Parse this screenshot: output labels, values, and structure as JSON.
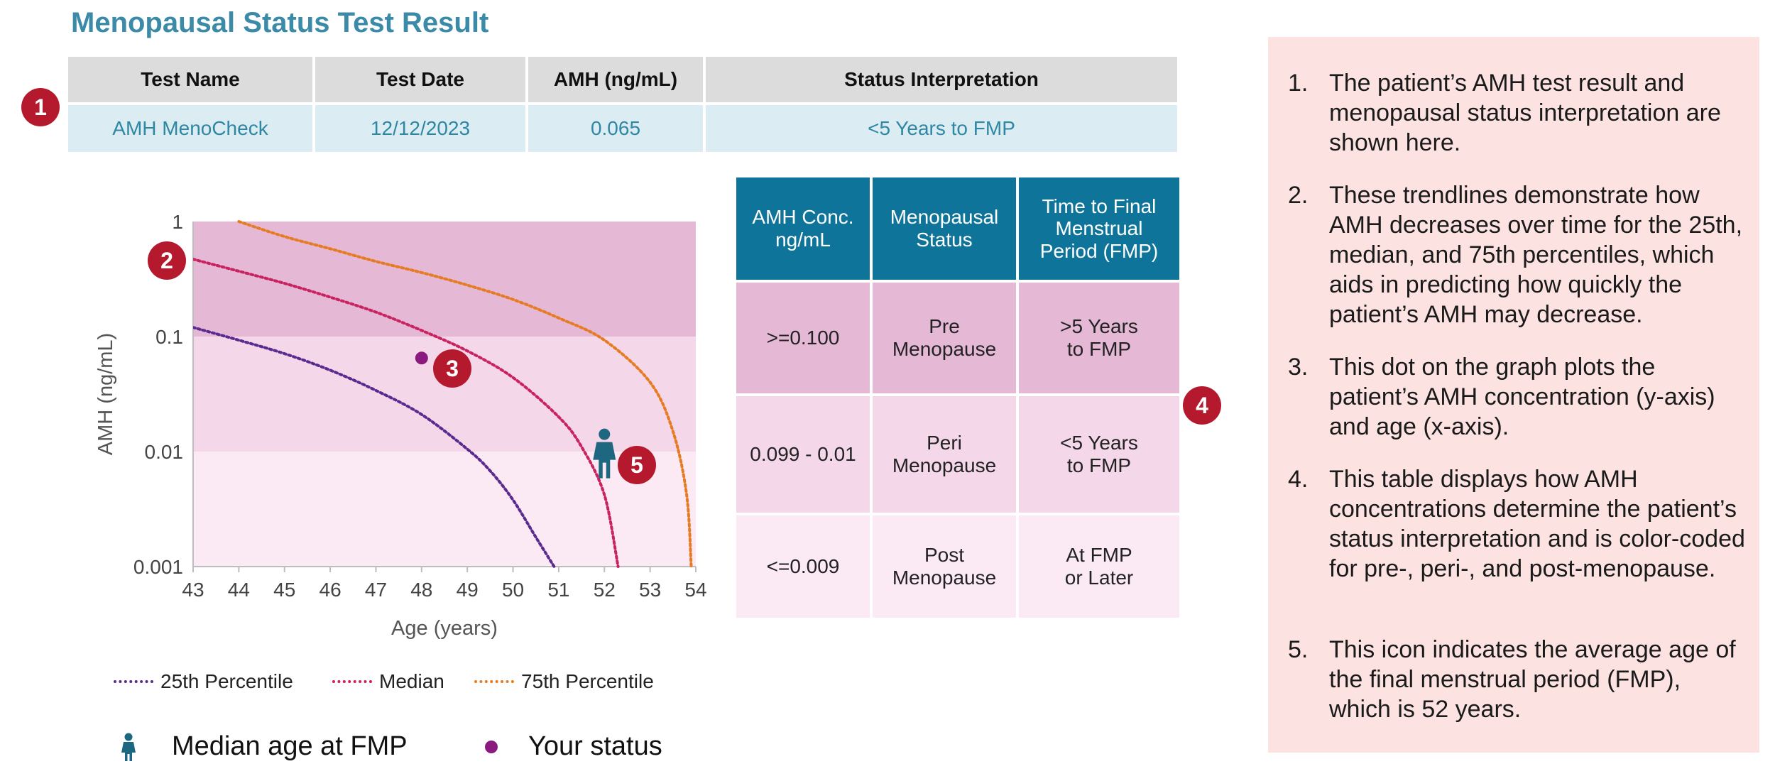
{
  "title": "Menopausal Status Test Result",
  "result_table": {
    "headers": [
      "Test Name",
      "Test Date",
      "AMH (ng/mL)",
      "Status Interpretation"
    ],
    "values": [
      "AMH MenoCheck",
      "12/12/2023",
      "0.065",
      "<5 Years to FMP"
    ]
  },
  "badges": [
    "1",
    "2",
    "3",
    "4",
    "5"
  ],
  "status_table": {
    "headers": [
      "AMH Conc.\nng/mL",
      "Menopausal\nStatus",
      "Time to Final\nMenstrual\nPeriod (FMP)"
    ],
    "rows": [
      {
        "conc": ">=0.100",
        "status": "Pre\nMenopause",
        "time": ">5 Years\nto FMP"
      },
      {
        "conc": "0.099 - 0.01",
        "status": "Peri\nMenopause",
        "time": "<5 Years\nto FMP"
      },
      {
        "conc": "<=0.009",
        "status": "Post\nMenopause",
        "time": "At FMP\nor Later"
      }
    ],
    "colors": {
      "header": "#0f7499",
      "pre": "#e5b8d6",
      "peri": "#f5d7ea",
      "post": "#fbeaf3"
    }
  },
  "chart_data": {
    "type": "line",
    "xlabel": "Age (years)",
    "ylabel": "AMH (ng/mL)",
    "xlim": [
      43,
      54
    ],
    "ylim": [
      0.001,
      1
    ],
    "yscale": "log",
    "x_ticks": [
      "43",
      "44",
      "45",
      "46",
      "47",
      "48",
      "49",
      "50",
      "51",
      "52",
      "53",
      "54"
    ],
    "y_ticks": [
      {
        "value": 1,
        "label": "1"
      },
      {
        "value": 0.1,
        "label": "0.1"
      },
      {
        "value": 0.01,
        "label": "0.01"
      },
      {
        "value": 0.001,
        "label": "0.001"
      }
    ],
    "bands": [
      {
        "from": 0.1,
        "to": 1,
        "color": "#e5b8d6"
      },
      {
        "from": 0.01,
        "to": 0.1,
        "color": "#f5d7ea"
      },
      {
        "from": 0.001,
        "to": 0.01,
        "color": "#fbeaf3"
      }
    ],
    "series": [
      {
        "name": "25th Percentile",
        "color": "#5b2a8f",
        "points": [
          [
            43,
            0.12
          ],
          [
            44,
            0.093
          ],
          [
            45,
            0.071
          ],
          [
            46,
            0.051
          ],
          [
            47,
            0.034
          ],
          [
            48,
            0.021
          ],
          [
            49,
            0.0105
          ],
          [
            49.5,
            0.0068
          ],
          [
            50,
            0.0038
          ],
          [
            50.5,
            0.0018
          ],
          [
            50.9,
            0.001
          ]
        ]
      },
      {
        "name": "Median",
        "color": "#c8235e",
        "points": [
          [
            43,
            0.47
          ],
          [
            44,
            0.37
          ],
          [
            45,
            0.29
          ],
          [
            46,
            0.22
          ],
          [
            47,
            0.163
          ],
          [
            48,
            0.113
          ],
          [
            49,
            0.075
          ],
          [
            50,
            0.044
          ],
          [
            51,
            0.02
          ],
          [
            51.5,
            0.011
          ],
          [
            52,
            0.0042
          ],
          [
            52.3,
            0.001
          ]
        ]
      },
      {
        "name": "75th Percentile",
        "color": "#e57c23",
        "points": [
          [
            44,
            1.0
          ],
          [
            45,
            0.74
          ],
          [
            46,
            0.58
          ],
          [
            47,
            0.45
          ],
          [
            48,
            0.36
          ],
          [
            49,
            0.28
          ],
          [
            50,
            0.21
          ],
          [
            51,
            0.145
          ],
          [
            52,
            0.093
          ],
          [
            53,
            0.04
          ],
          [
            53.5,
            0.015
          ],
          [
            53.8,
            0.0042
          ],
          [
            53.9,
            0.001
          ]
        ]
      }
    ],
    "patient_point": {
      "age": 48,
      "amh": 0.065,
      "color": "#8b1a7f",
      "label": "Your status"
    },
    "fmp_marker": {
      "age": 52,
      "amh": 0.0095,
      "color": "#1e6781",
      "label": "Median age at FMP"
    }
  },
  "legend": {
    "lines": [
      "25th Percentile",
      "Median",
      "75th Percentile"
    ],
    "fmp": "Median age at FMP",
    "status": "Your status"
  },
  "notes": [
    "The patient’s AMH test result and menopausal status interpretation are shown here.",
    "These trendlines demonstrate how AMH decreases over time for the 25th, median, and 75th percentiles, which aids in predicting how quickly the patient’s AMH may decrease.",
    "This dot on the graph plots the patient’s AMH concentration (y-axis) and age (x-axis).",
    "This table displays how AMH concentrations determine the patient’s status interpretation and is color-coded for pre-, peri-, and post-menopause.",
    "This icon indicates the average age of the final menstrual period (FMP), which is 52 years."
  ],
  "note_numbers": [
    "1.",
    "2.",
    "3.",
    "4.",
    "5."
  ]
}
